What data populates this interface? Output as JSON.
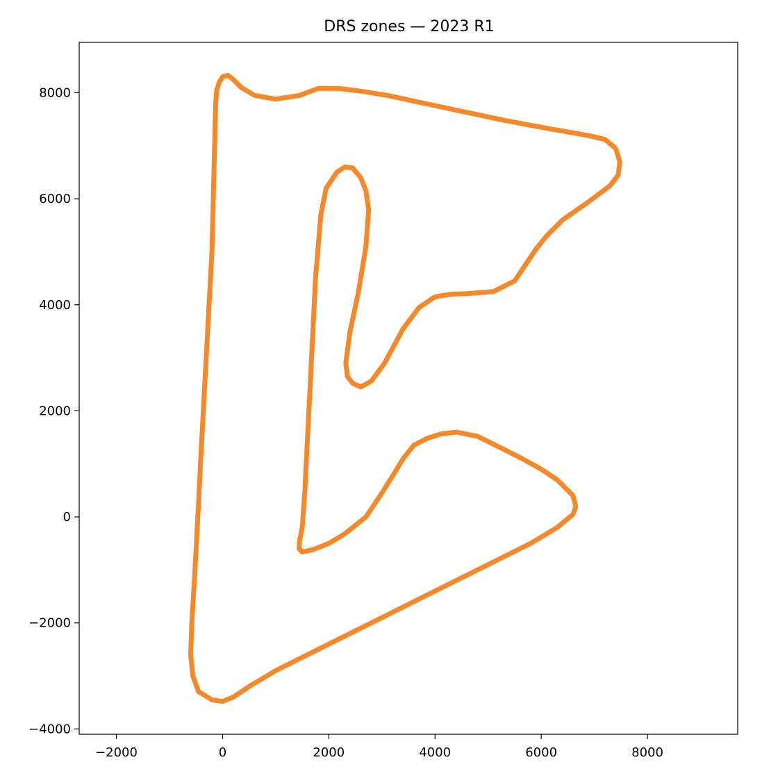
{
  "chart_data": {
    "type": "line",
    "title": "DRS zones — 2023 R1",
    "xlabel": "",
    "ylabel": "",
    "xlim": [
      -2700,
      9700
    ],
    "ylim": [
      -4100,
      8950
    ],
    "xticks": [
      -2000,
      0,
      2000,
      4000,
      6000,
      8000
    ],
    "xtick_labels": [
      "−2000",
      "0",
      "2000",
      "4000",
      "6000",
      "8000"
    ],
    "yticks": [
      -4000,
      -2000,
      0,
      2000,
      4000,
      6000,
      8000
    ],
    "ytick_labels": [
      "−4000",
      "−2000",
      "0",
      "2000",
      "4000",
      "6000",
      "8000"
    ],
    "grid": false,
    "series": [
      {
        "color": "#f5892a",
        "x": [
          -400,
          -200,
          -130,
          -110,
          -60,
          0,
          100,
          200,
          350,
          600,
          1000,
          1450,
          1800,
          2200,
          2600,
          3100,
          3700,
          4500,
          5300,
          6100,
          6900,
          7200,
          7400,
          7480,
          7450,
          7300,
          6900,
          6400,
          6100,
          5900,
          5700,
          5500,
          5100,
          4600,
          4300,
          4000,
          3700,
          3400,
          3050,
          2800,
          2600,
          2450,
          2350,
          2320,
          2400,
          2550,
          2700,
          2750,
          2700,
          2600,
          2450,
          2300,
          2150,
          1950,
          1850,
          1750,
          1700,
          1650,
          1600,
          1550,
          1500,
          1450,
          1440,
          1500,
          1700,
          2000,
          2300,
          2700,
          3000,
          3250,
          3400,
          3600,
          3850,
          4100,
          4400,
          4800,
          5200,
          5600,
          6000,
          6300,
          6600,
          6650,
          6600,
          6300,
          5800,
          5000,
          4000,
          3000,
          2000,
          1000,
          500,
          200,
          0,
          -200,
          -450,
          -560,
          -600,
          -580,
          -520,
          -450,
          -400
        ],
        "y": [
          1300,
          5000,
          7800,
          8050,
          8200,
          8300,
          8330,
          8250,
          8100,
          7950,
          7880,
          7950,
          8080,
          8080,
          8030,
          7950,
          7820,
          7650,
          7480,
          7330,
          7190,
          7120,
          6950,
          6700,
          6450,
          6250,
          5950,
          5600,
          5300,
          5050,
          4750,
          4450,
          4250,
          4210,
          4200,
          4150,
          3950,
          3550,
          2900,
          2560,
          2450,
          2520,
          2650,
          2900,
          3500,
          4200,
          5100,
          5800,
          6150,
          6400,
          6580,
          6600,
          6500,
          6200,
          5700,
          4500,
          3500,
          2500,
          1500,
          500,
          -200,
          -450,
          -600,
          -660,
          -620,
          -500,
          -320,
          0,
          450,
          850,
          1100,
          1350,
          1480,
          1560,
          1600,
          1520,
          1320,
          1120,
          900,
          700,
          400,
          200,
          50,
          -200,
          -500,
          -900,
          -1400,
          -1900,
          -2400,
          -2900,
          -3200,
          -3400,
          -3480,
          -3450,
          -3300,
          -3000,
          -2600,
          -2000,
          -1000,
          300,
          1300
        ]
      }
    ]
  }
}
